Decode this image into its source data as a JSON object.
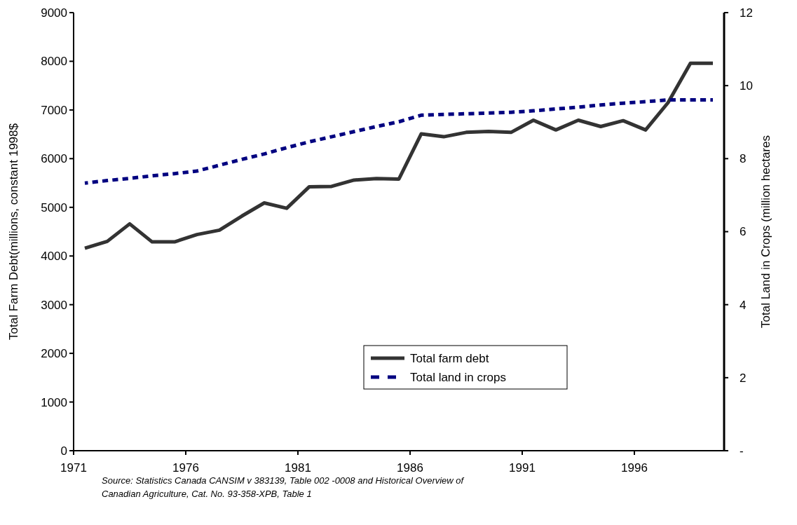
{
  "chart_data": {
    "type": "line",
    "x": [
      1971.5,
      1972.5,
      1973.5,
      1974.5,
      1975.5,
      1976.5,
      1977.5,
      1978.5,
      1979.5,
      1980.5,
      1981.5,
      1982.5,
      1983.5,
      1984.5,
      1985.5,
      1986.5,
      1987.5,
      1988.5,
      1989.5,
      1990.5,
      1991.5,
      1992.5,
      1993.5,
      1994.5,
      1995.5,
      1996.5,
      1997.5,
      1998.5,
      1999.5
    ],
    "series": [
      {
        "name": "Total farm debt",
        "color": "#333333",
        "line_style": "solid",
        "values": [
          4160,
          4300,
          4660,
          4290,
          4290,
          4440,
          4530,
          4820,
          5090,
          4980,
          5420,
          5430,
          5560,
          5590,
          5580,
          6510,
          6450,
          6540,
          6560,
          6540,
          6790,
          6590,
          6790,
          6660,
          6780,
          6590,
          7150,
          7960,
          7960
        ]
      },
      {
        "name": "Total land in crops",
        "color": "#000080",
        "line_style": "dashed",
        "axis": "y2",
        "values": [
          7.33,
          7.4,
          7.46,
          7.53,
          7.59,
          7.66,
          7.82,
          7.98,
          8.13,
          8.3,
          8.46,
          8.6,
          8.74,
          8.88,
          9.01,
          9.19,
          9.21,
          9.23,
          9.25,
          9.27,
          9.31,
          9.36,
          9.41,
          9.47,
          9.52,
          9.56,
          9.61,
          9.61,
          9.61
        ]
      }
    ],
    "xlim": [
      1971,
      2000
    ],
    "xticks": [
      1971,
      1976,
      1981,
      1986,
      1991,
      1996
    ],
    "ylim": [
      0,
      9000
    ],
    "yticks": [
      0,
      1000,
      2000,
      3000,
      4000,
      5000,
      6000,
      7000,
      8000,
      9000
    ],
    "y2lim": [
      0,
      12
    ],
    "y2ticks": [
      {
        "value": 0,
        "label": "-"
      },
      2,
      4,
      6,
      8,
      10,
      12
    ],
    "ylabel": "Total Farm Debt(millions, constant 1998$",
    "y2label": "Total Land in Crops (million hectares",
    "legend": "bottom",
    "grid": false,
    "annotations": [
      "Source: Statistics Canada CANSIM v 383139, Table 002 -0008 and  Historical Overview of Canadian Agriculture,  Cat. No. 93-358-XPB, Table 1"
    ]
  }
}
